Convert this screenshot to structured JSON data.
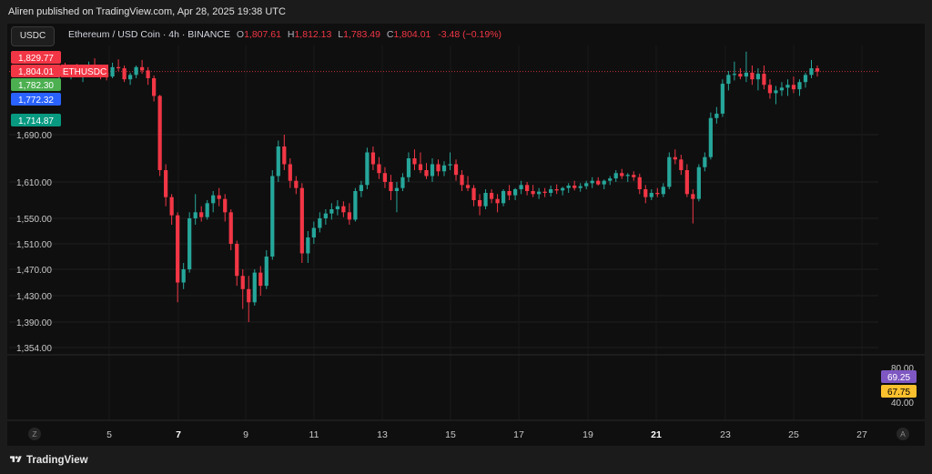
{
  "header": {
    "published_text": "Aliren published on TradingView.com, Apr 28, 2025 19:38 UTC"
  },
  "symbol_box": {
    "label": "USDC"
  },
  "legend": {
    "title": "Ethereum / USD Coin · 4h · BINANCE",
    "open_key": "O",
    "open": "1,807.61",
    "high_key": "H",
    "high": "1,812.13",
    "low_key": "L",
    "low": "1,783.49",
    "close_key": "C",
    "close": "1,804.01",
    "change": "-3.48 (−0.19%)"
  },
  "footer": {
    "brand": "TradingView"
  },
  "axis_buttons": {
    "left": "Z",
    "right": "A"
  },
  "colors": {
    "up": "#26a69a",
    "down": "#f23645",
    "background": "#0f0f0f"
  },
  "chart_data": {
    "type": "candlestick",
    "price_ticks": [
      "1,690.00",
      "1,610.00",
      "1,550.00",
      "1,510.00",
      "1,470.00",
      "1,430.00",
      "1,390.00",
      "1,354.00"
    ],
    "price_tick_values": [
      1690,
      1610,
      1550,
      1510,
      1470,
      1430,
      1390,
      1354
    ],
    "badges": [
      {
        "label": "1,829.77",
        "value": 1829.77,
        "color": "#f23645"
      },
      {
        "label": "1,804.01",
        "value": 1804.01,
        "color": "#f23645",
        "tag": "ETHUSDC"
      },
      {
        "label": "1,782.30",
        "value": 1782.3,
        "color": "#4caf50"
      },
      {
        "label": "1,772.32",
        "value": 1772.32,
        "color": "#2962ff"
      },
      {
        "label": "1,714.87",
        "value": 1714.87,
        "color": "#089981"
      }
    ],
    "date_ticks": [
      {
        "label": "5",
        "bold": false
      },
      {
        "label": "7",
        "bold": true
      },
      {
        "label": "9",
        "bold": false
      },
      {
        "label": "11",
        "bold": false
      },
      {
        "label": "13",
        "bold": false
      },
      {
        "label": "15",
        "bold": false
      },
      {
        "label": "17",
        "bold": false
      },
      {
        "label": "19",
        "bold": false
      },
      {
        "label": "21",
        "bold": true
      },
      {
        "label": "23",
        "bold": false
      },
      {
        "label": "25",
        "bold": false
      },
      {
        "label": "27",
        "bold": false
      }
    ],
    "last_close": 1804.01,
    "candles": [
      [
        1800,
        1812,
        1790,
        1805
      ],
      [
        1805,
        1820,
        1798,
        1801
      ],
      [
        1801,
        1815,
        1790,
        1808
      ],
      [
        1808,
        1818,
        1799,
        1796
      ],
      [
        1796,
        1806,
        1785,
        1800
      ],
      [
        1800,
        1822,
        1795,
        1815
      ],
      [
        1815,
        1828,
        1808,
        1810
      ],
      [
        1810,
        1816,
        1790,
        1802
      ],
      [
        1802,
        1810,
        1788,
        1795
      ],
      [
        1795,
        1820,
        1792,
        1812
      ],
      [
        1812,
        1826,
        1805,
        1810
      ],
      [
        1810,
        1815,
        1785,
        1790
      ],
      [
        1790,
        1802,
        1780,
        1798
      ],
      [
        1798,
        1815,
        1792,
        1812
      ],
      [
        1812,
        1825,
        1800,
        1806
      ],
      [
        1806,
        1812,
        1780,
        1792
      ],
      [
        1792,
        1797,
        1750,
        1760
      ],
      [
        1760,
        1762,
        1620,
        1630
      ],
      [
        1630,
        1640,
        1570,
        1585
      ],
      [
        1585,
        1590,
        1540,
        1555
      ],
      [
        1555,
        1560,
        1420,
        1450
      ],
      [
        1450,
        1480,
        1440,
        1470
      ],
      [
        1470,
        1560,
        1465,
        1550
      ],
      [
        1550,
        1590,
        1540,
        1560
      ],
      [
        1560,
        1570,
        1545,
        1552
      ],
      [
        1552,
        1580,
        1548,
        1575
      ],
      [
        1575,
        1595,
        1560,
        1588
      ],
      [
        1588,
        1600,
        1570,
        1582
      ],
      [
        1582,
        1590,
        1545,
        1560
      ],
      [
        1560,
        1565,
        1500,
        1510
      ],
      [
        1510,
        1515,
        1445,
        1460
      ],
      [
        1460,
        1470,
        1410,
        1440
      ],
      [
        1440,
        1460,
        1390,
        1420
      ],
      [
        1420,
        1470,
        1415,
        1465
      ],
      [
        1465,
        1475,
        1430,
        1445
      ],
      [
        1445,
        1500,
        1440,
        1490
      ],
      [
        1490,
        1630,
        1485,
        1620
      ],
      [
        1620,
        1680,
        1610,
        1670
      ],
      [
        1670,
        1690,
        1630,
        1640
      ],
      [
        1640,
        1650,
        1600,
        1612
      ],
      [
        1612,
        1620,
        1590,
        1600
      ],
      [
        1600,
        1608,
        1480,
        1495
      ],
      [
        1495,
        1530,
        1480,
        1520
      ],
      [
        1520,
        1545,
        1510,
        1535
      ],
      [
        1535,
        1560,
        1528,
        1550
      ],
      [
        1550,
        1565,
        1540,
        1558
      ],
      [
        1558,
        1575,
        1548,
        1565
      ],
      [
        1565,
        1580,
        1555,
        1570
      ],
      [
        1570,
        1578,
        1552,
        1560
      ],
      [
        1560,
        1575,
        1540,
        1548
      ],
      [
        1548,
        1600,
        1545,
        1595
      ],
      [
        1595,
        1612,
        1585,
        1605
      ],
      [
        1605,
        1668,
        1598,
        1660
      ],
      [
        1660,
        1670,
        1630,
        1640
      ],
      [
        1640,
        1652,
        1615,
        1625
      ],
      [
        1625,
        1635,
        1600,
        1610
      ],
      [
        1610,
        1622,
        1580,
        1595
      ],
      [
        1595,
        1610,
        1560,
        1600
      ],
      [
        1600,
        1625,
        1595,
        1618
      ],
      [
        1618,
        1660,
        1610,
        1650
      ],
      [
        1650,
        1665,
        1630,
        1640
      ],
      [
        1640,
        1660,
        1625,
        1630
      ],
      [
        1630,
        1642,
        1615,
        1620
      ],
      [
        1620,
        1650,
        1610,
        1640
      ],
      [
        1640,
        1648,
        1620,
        1628
      ],
      [
        1628,
        1645,
        1620,
        1638
      ],
      [
        1638,
        1660,
        1630,
        1640
      ],
      [
        1640,
        1648,
        1612,
        1622
      ],
      [
        1622,
        1630,
        1595,
        1605
      ],
      [
        1605,
        1620,
        1595,
        1600
      ],
      [
        1600,
        1605,
        1570,
        1580
      ],
      [
        1580,
        1590,
        1555,
        1570
      ],
      [
        1570,
        1598,
        1565,
        1592
      ],
      [
        1592,
        1598,
        1575,
        1582
      ],
      [
        1582,
        1590,
        1560,
        1575
      ],
      [
        1575,
        1598,
        1570,
        1595
      ],
      [
        1595,
        1605,
        1580,
        1588
      ],
      [
        1588,
        1600,
        1580,
        1598
      ],
      [
        1598,
        1612,
        1590,
        1605
      ],
      [
        1605,
        1610,
        1588,
        1595
      ],
      [
        1595,
        1605,
        1585,
        1590
      ],
      [
        1590,
        1600,
        1582,
        1594
      ],
      [
        1594,
        1600,
        1585,
        1592
      ],
      [
        1592,
        1604,
        1586,
        1598
      ],
      [
        1598,
        1606,
        1590,
        1596
      ],
      [
        1596,
        1602,
        1588,
        1600
      ],
      [
        1600,
        1608,
        1592,
        1604
      ],
      [
        1604,
        1612,
        1596,
        1600
      ],
      [
        1600,
        1608,
        1594,
        1603
      ],
      [
        1603,
        1612,
        1598,
        1608
      ],
      [
        1608,
        1618,
        1600,
        1612
      ],
      [
        1612,
        1618,
        1604,
        1606
      ],
      [
        1606,
        1614,
        1598,
        1612
      ],
      [
        1612,
        1620,
        1605,
        1616
      ],
      [
        1616,
        1630,
        1610,
        1625
      ],
      [
        1625,
        1632,
        1615,
        1620
      ],
      [
        1620,
        1625,
        1610,
        1622
      ],
      [
        1622,
        1628,
        1612,
        1618
      ],
      [
        1618,
        1624,
        1590,
        1598
      ],
      [
        1598,
        1605,
        1575,
        1585
      ],
      [
        1585,
        1598,
        1580,
        1592
      ],
      [
        1592,
        1600,
        1585,
        1590
      ],
      [
        1590,
        1608,
        1585,
        1602
      ],
      [
        1602,
        1660,
        1598,
        1652
      ],
      [
        1652,
        1665,
        1640,
        1648
      ],
      [
        1648,
        1656,
        1622,
        1630
      ],
      [
        1630,
        1640,
        1585,
        1590
      ],
      [
        1590,
        1598,
        1542,
        1582
      ],
      [
        1582,
        1640,
        1578,
        1635
      ],
      [
        1635,
        1660,
        1628,
        1652
      ],
      [
        1652,
        1730,
        1648,
        1720
      ],
      [
        1720,
        1740,
        1710,
        1728
      ],
      [
        1728,
        1790,
        1722,
        1782
      ],
      [
        1782,
        1805,
        1770,
        1798
      ],
      [
        1798,
        1822,
        1788,
        1800
      ],
      [
        1800,
        1810,
        1790,
        1795
      ],
      [
        1795,
        1840,
        1785,
        1802
      ],
      [
        1802,
        1815,
        1780,
        1790
      ],
      [
        1790,
        1810,
        1770,
        1800
      ],
      [
        1800,
        1815,
        1772,
        1780
      ],
      [
        1780,
        1790,
        1755,
        1765
      ],
      [
        1765,
        1778,
        1745,
        1770
      ],
      [
        1770,
        1785,
        1760,
        1775
      ],
      [
        1775,
        1790,
        1760,
        1780
      ],
      [
        1780,
        1795,
        1765,
        1772
      ],
      [
        1772,
        1790,
        1760,
        1785
      ],
      [
        1785,
        1802,
        1775,
        1798
      ],
      [
        1798,
        1825,
        1792,
        1810
      ],
      [
        1810,
        1815,
        1795,
        1804
      ]
    ]
  },
  "indicator": {
    "ticks": [
      "80.00",
      "40.00"
    ],
    "tick_values": [
      80,
      40
    ],
    "badges": [
      {
        "label": "69.25",
        "value": 69.25,
        "color": "#7e57c2"
      },
      {
        "label": "67.75",
        "value": 67.75,
        "color": "#fbc02d",
        "text_color": "#000000"
      }
    ]
  }
}
